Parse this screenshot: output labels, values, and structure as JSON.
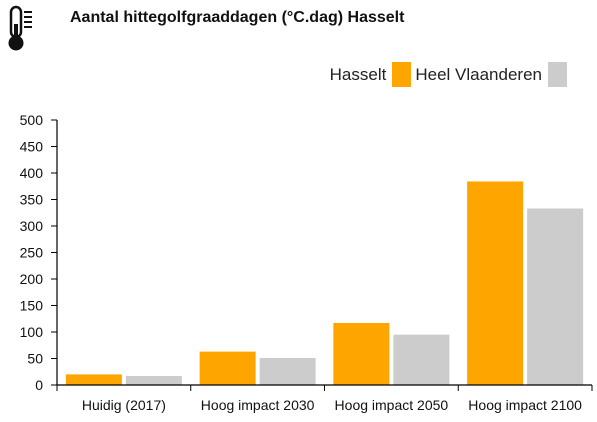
{
  "title": "Aantal hittegolfgraaddagen (°C.dag) Hasselt",
  "icon": "thermometer-icon",
  "chart_data": {
    "type": "bar",
    "title": "Aantal hittegolfgraaddagen (°C.dag) Hasselt",
    "xlabel": "",
    "ylabel": "",
    "categories": [
      "Huidig (2017)",
      "Hoog impact 2030",
      "Hoog impact 2050",
      "Hoog impact 2100"
    ],
    "series": [
      {
        "name": "Hasselt",
        "color": "#FFA500",
        "values": [
          20,
          63,
          117,
          384
        ]
      },
      {
        "name": "Heel Vlaanderen",
        "color": "#CCCCCC",
        "values": [
          17,
          51,
          95,
          333
        ]
      }
    ],
    "ylim": [
      0,
      500
    ],
    "yticks": [
      "0",
      "50",
      "100",
      "150",
      "200",
      "250",
      "300",
      "350",
      "400",
      "450",
      "500"
    ],
    "grid": false,
    "legend_position": "top-right"
  }
}
